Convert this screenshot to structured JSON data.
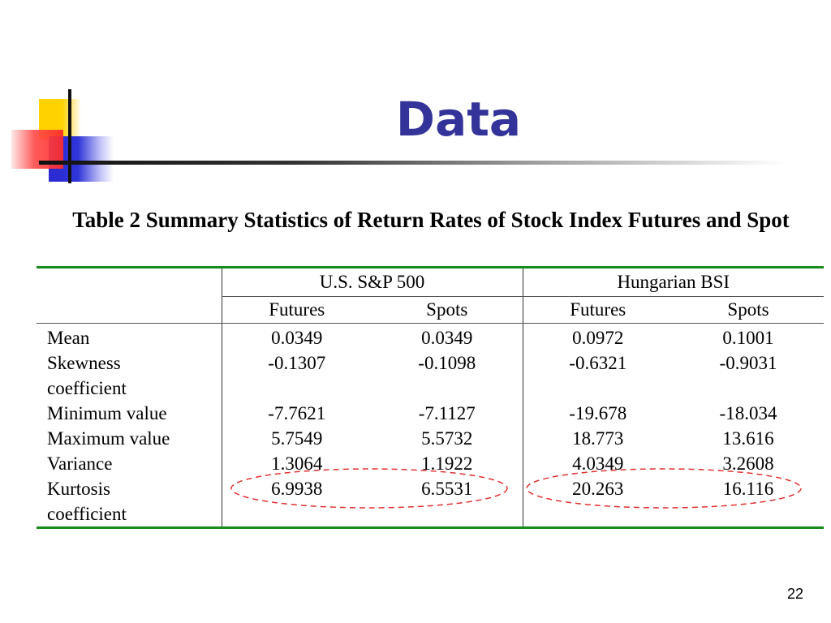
{
  "slide": {
    "title": "Data",
    "caption": "Table 2 Summary Statistics of Return Rates of Stock Index Futures and Spot",
    "page_number": "22"
  },
  "table": {
    "groups": [
      "U.S. S&P 500",
      "Hungarian BSI"
    ],
    "subheaders": [
      "Futures",
      "Spots",
      "Futures",
      "Spots"
    ],
    "rows": [
      {
        "label": "Mean",
        "values": [
          "0.0349",
          "0.0349",
          "0.0972",
          "0.1001"
        ]
      },
      {
        "label": "Skewness",
        "values": [
          "-0.1307",
          "-0.1098",
          "-0.6321",
          "-0.9031"
        ]
      },
      {
        "label": "coefficient",
        "values": [
          "",
          "",
          "",
          ""
        ]
      },
      {
        "label": "Minimum value",
        "values": [
          "-7.7621",
          "-7.1127",
          "-19.678",
          "-18.034"
        ]
      },
      {
        "label": "Maximum value",
        "values": [
          "5.7549",
          "5.5732",
          "18.773",
          "13.616"
        ]
      },
      {
        "label": "Variance",
        "values": [
          "1.3064",
          "1.1922",
          "4.0349",
          "3.2608"
        ]
      },
      {
        "label": "Kurtosis",
        "values": [
          "6.9938",
          "6.5531",
          "20.263",
          "16.116"
        ]
      },
      {
        "label": "coefficient",
        "values": [
          "",
          "",
          "",
          ""
        ]
      }
    ]
  },
  "annotations": {
    "highlight_color": "#e03030",
    "highlighted_row": "Kurtosis"
  }
}
